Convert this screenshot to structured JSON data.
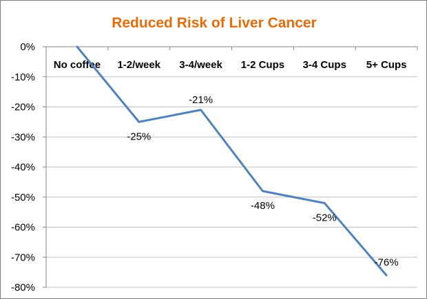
{
  "chart_data": {
    "type": "line",
    "title": "Reduced Risk of Liver Cancer",
    "categories": [
      "No coffee",
      "1-2/week",
      "3-4/week",
      "1-2 Cups",
      "3-4 Cups",
      "5+ Cups"
    ],
    "series": [
      {
        "values": [
          0,
          -25,
          -21,
          -48,
          -52,
          -76
        ]
      }
    ],
    "data_labels": [
      "",
      "-25%",
      "-21%",
      "-48%",
      "-52%",
      "-76%"
    ],
    "y_ticks": [
      0,
      -10,
      -20,
      -30,
      -40,
      -50,
      -60,
      -70,
      -80
    ],
    "y_tick_labels": [
      "0%",
      "-10%",
      "-20%",
      "-30%",
      "-40%",
      "-50%",
      "-60%",
      "-70%",
      "-80%"
    ],
    "ylim": [
      -80,
      0
    ],
    "grid": true,
    "legend": "none",
    "colors": {
      "series": "#4f81bd",
      "title": "#e46c0a",
      "grid": "#bfbfbf"
    }
  }
}
